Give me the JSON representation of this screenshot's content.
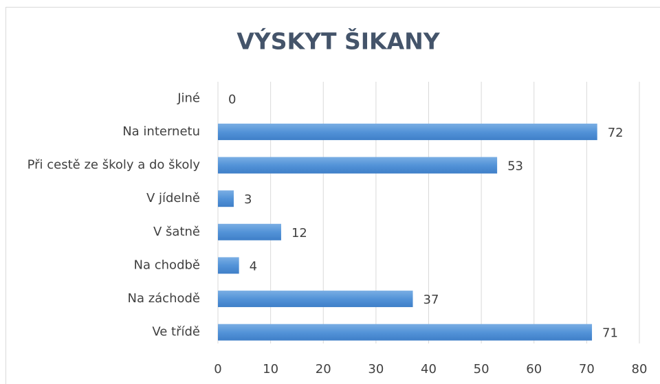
{
  "chart_data": {
    "type": "barh",
    "title": "VÝSKYT ŠIKANY",
    "categories": [
      "Jiné",
      "Na internetu",
      "Při cestě ze školy a do školy",
      "V jídelně",
      "V šatně",
      "Na chodbě",
      "Na záchodě",
      "Ve třídě"
    ],
    "values": [
      0,
      72,
      53,
      3,
      12,
      4,
      37,
      71
    ],
    "color": "#5393d8",
    "xlim": [
      0,
      80
    ],
    "xticks": [
      0,
      10,
      20,
      30,
      40,
      50,
      60,
      70,
      80
    ],
    "grid": true
  }
}
